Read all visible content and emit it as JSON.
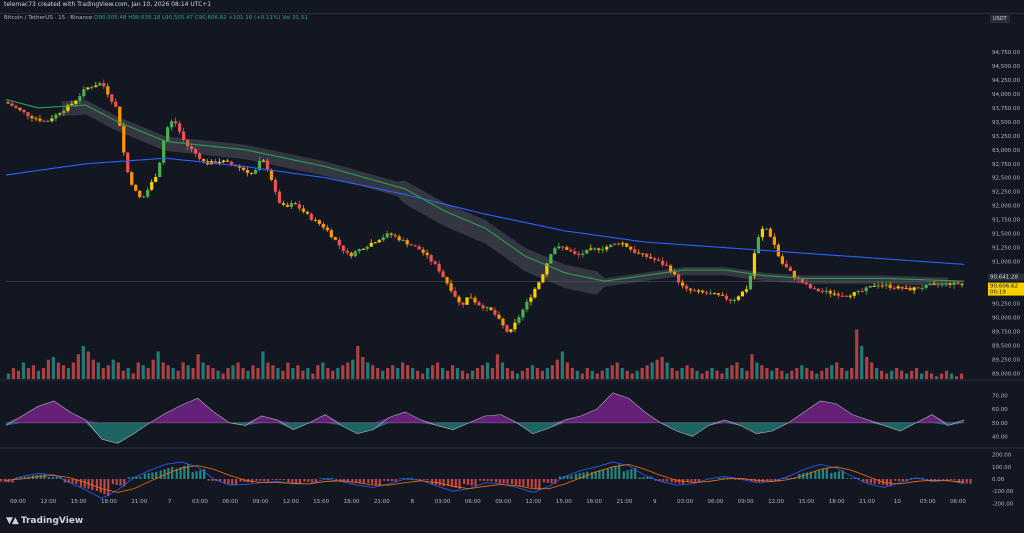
{
  "header": {
    "created_by": "telemac73 created with TradingView.com, Jan 10, 2026 08:14 UTC+1"
  },
  "legend": {
    "symbol": "Bitcoin / TetherUS · 15 · Binance",
    "ohlc": "O90,505.48 H90,635.18 L90,505.47 C90,606.62 +101.16 (+0.11%)",
    "vol": "Vol 31.51"
  },
  "badge": {
    "currency": "USDT"
  },
  "colors": {
    "background": "#131722",
    "up": "#26a69a",
    "down": "#ef5350",
    "ma_blue": "#2962ff",
    "ma_green": "#2e9e4f",
    "cloud": "#5d606b",
    "price_tag": "#f7d100"
  },
  "chart_data": [
    {
      "type": "line",
      "title": "",
      "price_axis": {
        "ylim": [
          88900,
          95250
        ],
        "ticks": [
          "94,750.00",
          "94,500.00",
          "94,250.00",
          "94,000.00",
          "93,750.00",
          "93,500.00",
          "93,250.00",
          "93,000.00",
          "92,750.00",
          "92,500.00",
          "92,250.00",
          "92,000.00",
          "91,750.00",
          "91,500.00",
          "91,250.00",
          "91,000.00",
          "90,750.00",
          "90,500.00",
          "90,250.00",
          "90,000.00",
          "89,750.00",
          "89,500.00",
          "89,250.00",
          "89,000.00"
        ],
        "tick_values": [
          94750,
          94500,
          94250,
          94000,
          93750,
          93500,
          93250,
          93000,
          92750,
          92500,
          92250,
          92000,
          91750,
          91500,
          91250,
          91000,
          90750,
          90500,
          90250,
          90000,
          89750,
          89500,
          89250,
          89000
        ]
      },
      "current_price": {
        "value": 90606.62,
        "label": "90,606.62",
        "countdown": "00:19"
      },
      "reference_price": {
        "value": 90641.28,
        "label": "90,641.28"
      },
      "x_labels": [
        "09:00",
        "12:00",
        "15:00",
        "18:00",
        "21:00",
        "7",
        "03:00",
        "06:00",
        "09:00",
        "12:00",
        "15:00",
        "18:00",
        "21:00",
        "8",
        "03:00",
        "06:00",
        "09:00",
        "12:00",
        "15:00",
        "18:00",
        "21:00",
        "9",
        "03:00",
        "06:00",
        "09:00",
        "12:00",
        "15:00",
        "18:00",
        "21:00",
        "10",
        "03:00",
        "06:00"
      ],
      "series": [
        {
          "x": [
            0,
            6,
            10,
            14,
            17,
            20,
            24,
            28,
            30,
            32,
            34,
            36,
            38,
            40,
            42,
            45,
            48,
            50,
            54,
            58,
            62,
            64,
            66,
            68,
            70,
            72,
            76,
            80,
            84,
            86,
            88,
            92,
            96,
            100,
            104,
            108,
            112,
            114,
            116,
            118,
            122,
            126,
            130,
            134,
            137,
            140,
            143,
            146,
            150,
            154,
            158,
            162,
            166,
            170,
            174,
            178,
            182,
            186,
            188,
            190,
            192,
            194,
            198,
            202,
            206,
            210,
            214,
            218,
            222,
            226,
            230,
            234,
            238
          ],
          "values": [
            93850,
            93600,
            93500,
            93700,
            93850,
            94100,
            94200,
            93700,
            92700,
            92300,
            92100,
            92350,
            92600,
            93350,
            93550,
            93100,
            92900,
            92750,
            92800,
            92700,
            92550,
            92850,
            92600,
            92100,
            91950,
            92050,
            91800,
            91600,
            91250,
            91100,
            91200,
            91350,
            91500,
            91350,
            91200,
            90900,
            90450,
            90200,
            90400,
            90250,
            90100,
            89700,
            90200,
            90700,
            91250,
            91250,
            91100,
            91200,
            91250,
            91350,
            91150,
            91050,
            90900,
            90500,
            90450,
            90400,
            90300,
            90550,
            91350,
            91650,
            91400,
            91000,
            90700,
            90500,
            90450,
            90400,
            90450,
            90600,
            90550,
            90500,
            90550,
            90600,
            90606
          ]
        },
        {
          "name": "",
          "x": [
            0,
            20,
            40,
            60,
            80,
            100,
            120,
            140,
            160,
            180,
            200,
            220,
            240
          ],
          "values": [
            92550,
            92750,
            92850,
            92700,
            92500,
            92200,
            91850,
            91550,
            91350,
            91250,
            91150,
            91050,
            90950
          ]
        },
        {
          "name": "",
          "x": [
            0,
            8,
            20,
            28,
            40,
            60,
            80,
            100,
            110,
            120,
            130,
            140,
            150,
            160,
            170,
            180,
            190,
            200,
            220,
            240
          ],
          "values": [
            93900,
            93750,
            93800,
            93500,
            93150,
            93000,
            92700,
            92300,
            91900,
            91600,
            91100,
            90800,
            90650,
            90750,
            90850,
            90850,
            90750,
            90700,
            90700,
            90650
          ]
        }
      ]
    },
    {
      "type": "bar",
      "title": "",
      "values_relative": [
        0.1,
        0.2,
        0.15,
        0.3,
        0.2,
        0.25,
        0.15,
        0.2,
        0.35,
        0.4,
        0.3,
        0.25,
        0.2,
        0.3,
        0.45,
        0.6,
        0.5,
        0.35,
        0.3,
        0.2,
        0.25,
        0.35,
        0.3,
        0.15,
        0.2,
        0.1,
        0.3,
        0.25,
        0.2,
        0.35,
        0.5,
        0.3,
        0.25,
        0.2,
        0.15,
        0.3,
        0.25,
        0.2,
        0.45,
        0.3,
        0.25,
        0.2,
        0.15,
        0.1,
        0.2,
        0.25,
        0.3,
        0.2,
        0.15,
        0.25,
        0.2,
        0.5,
        0.3,
        0.25,
        0.2,
        0.15,
        0.3,
        0.2,
        0.25,
        0.15,
        0.2,
        0.1,
        0.25,
        0.3,
        0.2,
        0.15,
        0.2,
        0.25,
        0.3,
        0.35,
        0.6,
        0.4,
        0.3,
        0.25,
        0.2,
        0.15,
        0.2,
        0.25,
        0.2,
        0.3,
        0.25,
        0.2,
        0.15,
        0.1,
        0.2,
        0.25,
        0.3,
        0.2,
        0.15,
        0.25,
        0.2,
        0.15,
        0.1,
        0.15,
        0.2,
        0.25,
        0.3,
        0.2,
        0.45,
        0.3,
        0.2,
        0.15,
        0.1,
        0.15,
        0.2,
        0.25,
        0.2,
        0.15,
        0.2,
        0.25,
        0.35,
        0.5,
        0.3,
        0.2,
        0.15,
        0.1,
        0.2,
        0.15,
        0.1,
        0.15,
        0.2,
        0.25,
        0.3,
        0.2,
        0.15,
        0.1,
        0.15,
        0.2,
        0.25,
        0.3,
        0.35,
        0.4,
        0.3,
        0.2,
        0.15,
        0.2,
        0.25,
        0.2,
        0.15,
        0.1,
        0.15,
        0.2,
        0.15,
        0.1,
        0.2,
        0.25,
        0.3,
        0.2,
        0.15,
        0.45,
        0.3,
        0.25,
        0.2,
        0.15,
        0.2,
        0.15,
        0.1,
        0.15,
        0.2,
        0.25,
        0.2,
        0.15,
        0.1,
        0.15,
        0.2,
        0.25,
        0.3,
        0.2,
        0.15,
        0.2,
        0.9,
        0.6,
        0.4,
        0.3,
        0.2,
        0.15,
        0.1,
        0.15,
        0.2,
        0.15,
        0.1,
        0.15,
        0.2,
        0.1,
        0.15,
        0.1,
        0.05,
        0.1,
        0.15,
        0.1,
        0.05,
        0.1
      ]
    },
    {
      "type": "area",
      "title": "",
      "y_ticks": [
        "70.00",
        "60.00",
        "50.00",
        "40.00"
      ],
      "y_tick_values": [
        70,
        60,
        50,
        40
      ],
      "ylim": [
        33,
        77
      ],
      "midline": 50,
      "x": [
        0,
        4,
        8,
        12,
        16,
        20,
        24,
        28,
        32,
        36,
        40,
        44,
        48,
        52,
        56,
        60,
        64,
        68,
        72,
        76,
        80,
        84,
        88,
        92,
        96,
        100,
        104,
        108,
        112,
        116,
        120,
        124,
        128,
        132,
        136,
        140,
        144,
        148,
        152,
        156,
        160,
        164,
        168,
        172,
        176,
        180,
        184,
        188,
        192,
        196,
        200,
        204,
        208,
        212,
        216,
        220,
        224,
        228,
        232,
        236,
        240
      ],
      "values": [
        48,
        55,
        62,
        66,
        58,
        52,
        38,
        35,
        42,
        50,
        57,
        63,
        68,
        58,
        50,
        48,
        55,
        52,
        45,
        50,
        56,
        48,
        42,
        45,
        54,
        58,
        52,
        48,
        45,
        50,
        55,
        56,
        50,
        42,
        46,
        52,
        55,
        60,
        72,
        68,
        58,
        50,
        44,
        40,
        48,
        52,
        48,
        42,
        44,
        50,
        58,
        66,
        64,
        56,
        52,
        48,
        44,
        50,
        56,
        48,
        52
      ]
    },
    {
      "type": "bar",
      "title": "",
      "y_ticks": [
        "200.00",
        "100.00",
        "0.00",
        "-100.00",
        "-200.00"
      ],
      "y_tick_values": [
        200,
        100,
        0,
        -100,
        -200
      ],
      "ylim": [
        -230,
        230
      ],
      "x": [
        0,
        4,
        8,
        12,
        16,
        20,
        24,
        28,
        32,
        36,
        40,
        44,
        48,
        52,
        56,
        60,
        64,
        68,
        72,
        76,
        80,
        84,
        88,
        92,
        96,
        100,
        104,
        108,
        112,
        116,
        120,
        124,
        128,
        132,
        136,
        140,
        144,
        148,
        152,
        156,
        160,
        164,
        168,
        172,
        176,
        180,
        184,
        188,
        192,
        196,
        200,
        204,
        208,
        212,
        216,
        220,
        224,
        228,
        232,
        236,
        240
      ],
      "histogram": [
        -30,
        20,
        40,
        20,
        -40,
        -90,
        -140,
        -60,
        20,
        60,
        100,
        120,
        80,
        -20,
        -50,
        -30,
        -20,
        -10,
        -40,
        -30,
        10,
        -20,
        -40,
        -50,
        -20,
        10,
        -10,
        -60,
        -80,
        -60,
        -20,
        -40,
        -60,
        -90,
        -40,
        30,
        60,
        80,
        120,
        90,
        20,
        -20,
        -40,
        -30,
        0,
        10,
        -10,
        -30,
        -20,
        10,
        60,
        90,
        70,
        10,
        -40,
        -60,
        -20,
        10,
        -20,
        -10,
        -40
      ],
      "macd": [
        -20,
        20,
        45,
        35,
        -30,
        -90,
        -160,
        -90,
        10,
        70,
        120,
        140,
        100,
        0,
        -50,
        -45,
        -30,
        -20,
        -40,
        -40,
        0,
        -20,
        -50,
        -70,
        -40,
        0,
        -10,
        -60,
        -100,
        -80,
        -30,
        -40,
        -70,
        -110,
        -60,
        20,
        70,
        100,
        140,
        110,
        30,
        -20,
        -50,
        -40,
        0,
        20,
        0,
        -30,
        -20,
        20,
        80,
        120,
        90,
        20,
        -40,
        -70,
        -30,
        10,
        -20,
        -10,
        -40
      ],
      "signal": [
        -10,
        0,
        20,
        30,
        10,
        -30,
        -80,
        -110,
        -80,
        -20,
        40,
        90,
        110,
        80,
        30,
        -10,
        -30,
        -30,
        -35,
        -40,
        -20,
        -15,
        -30,
        -50,
        -50,
        -30,
        -15,
        -30,
        -60,
        -80,
        -60,
        -45,
        -55,
        -80,
        -80,
        -40,
        10,
        60,
        100,
        120,
        80,
        30,
        -10,
        -30,
        -20,
        0,
        5,
        -10,
        -20,
        -5,
        30,
        80,
        100,
        70,
        20,
        -30,
        -40,
        -20,
        -10,
        -15,
        -25
      ]
    }
  ]
}
